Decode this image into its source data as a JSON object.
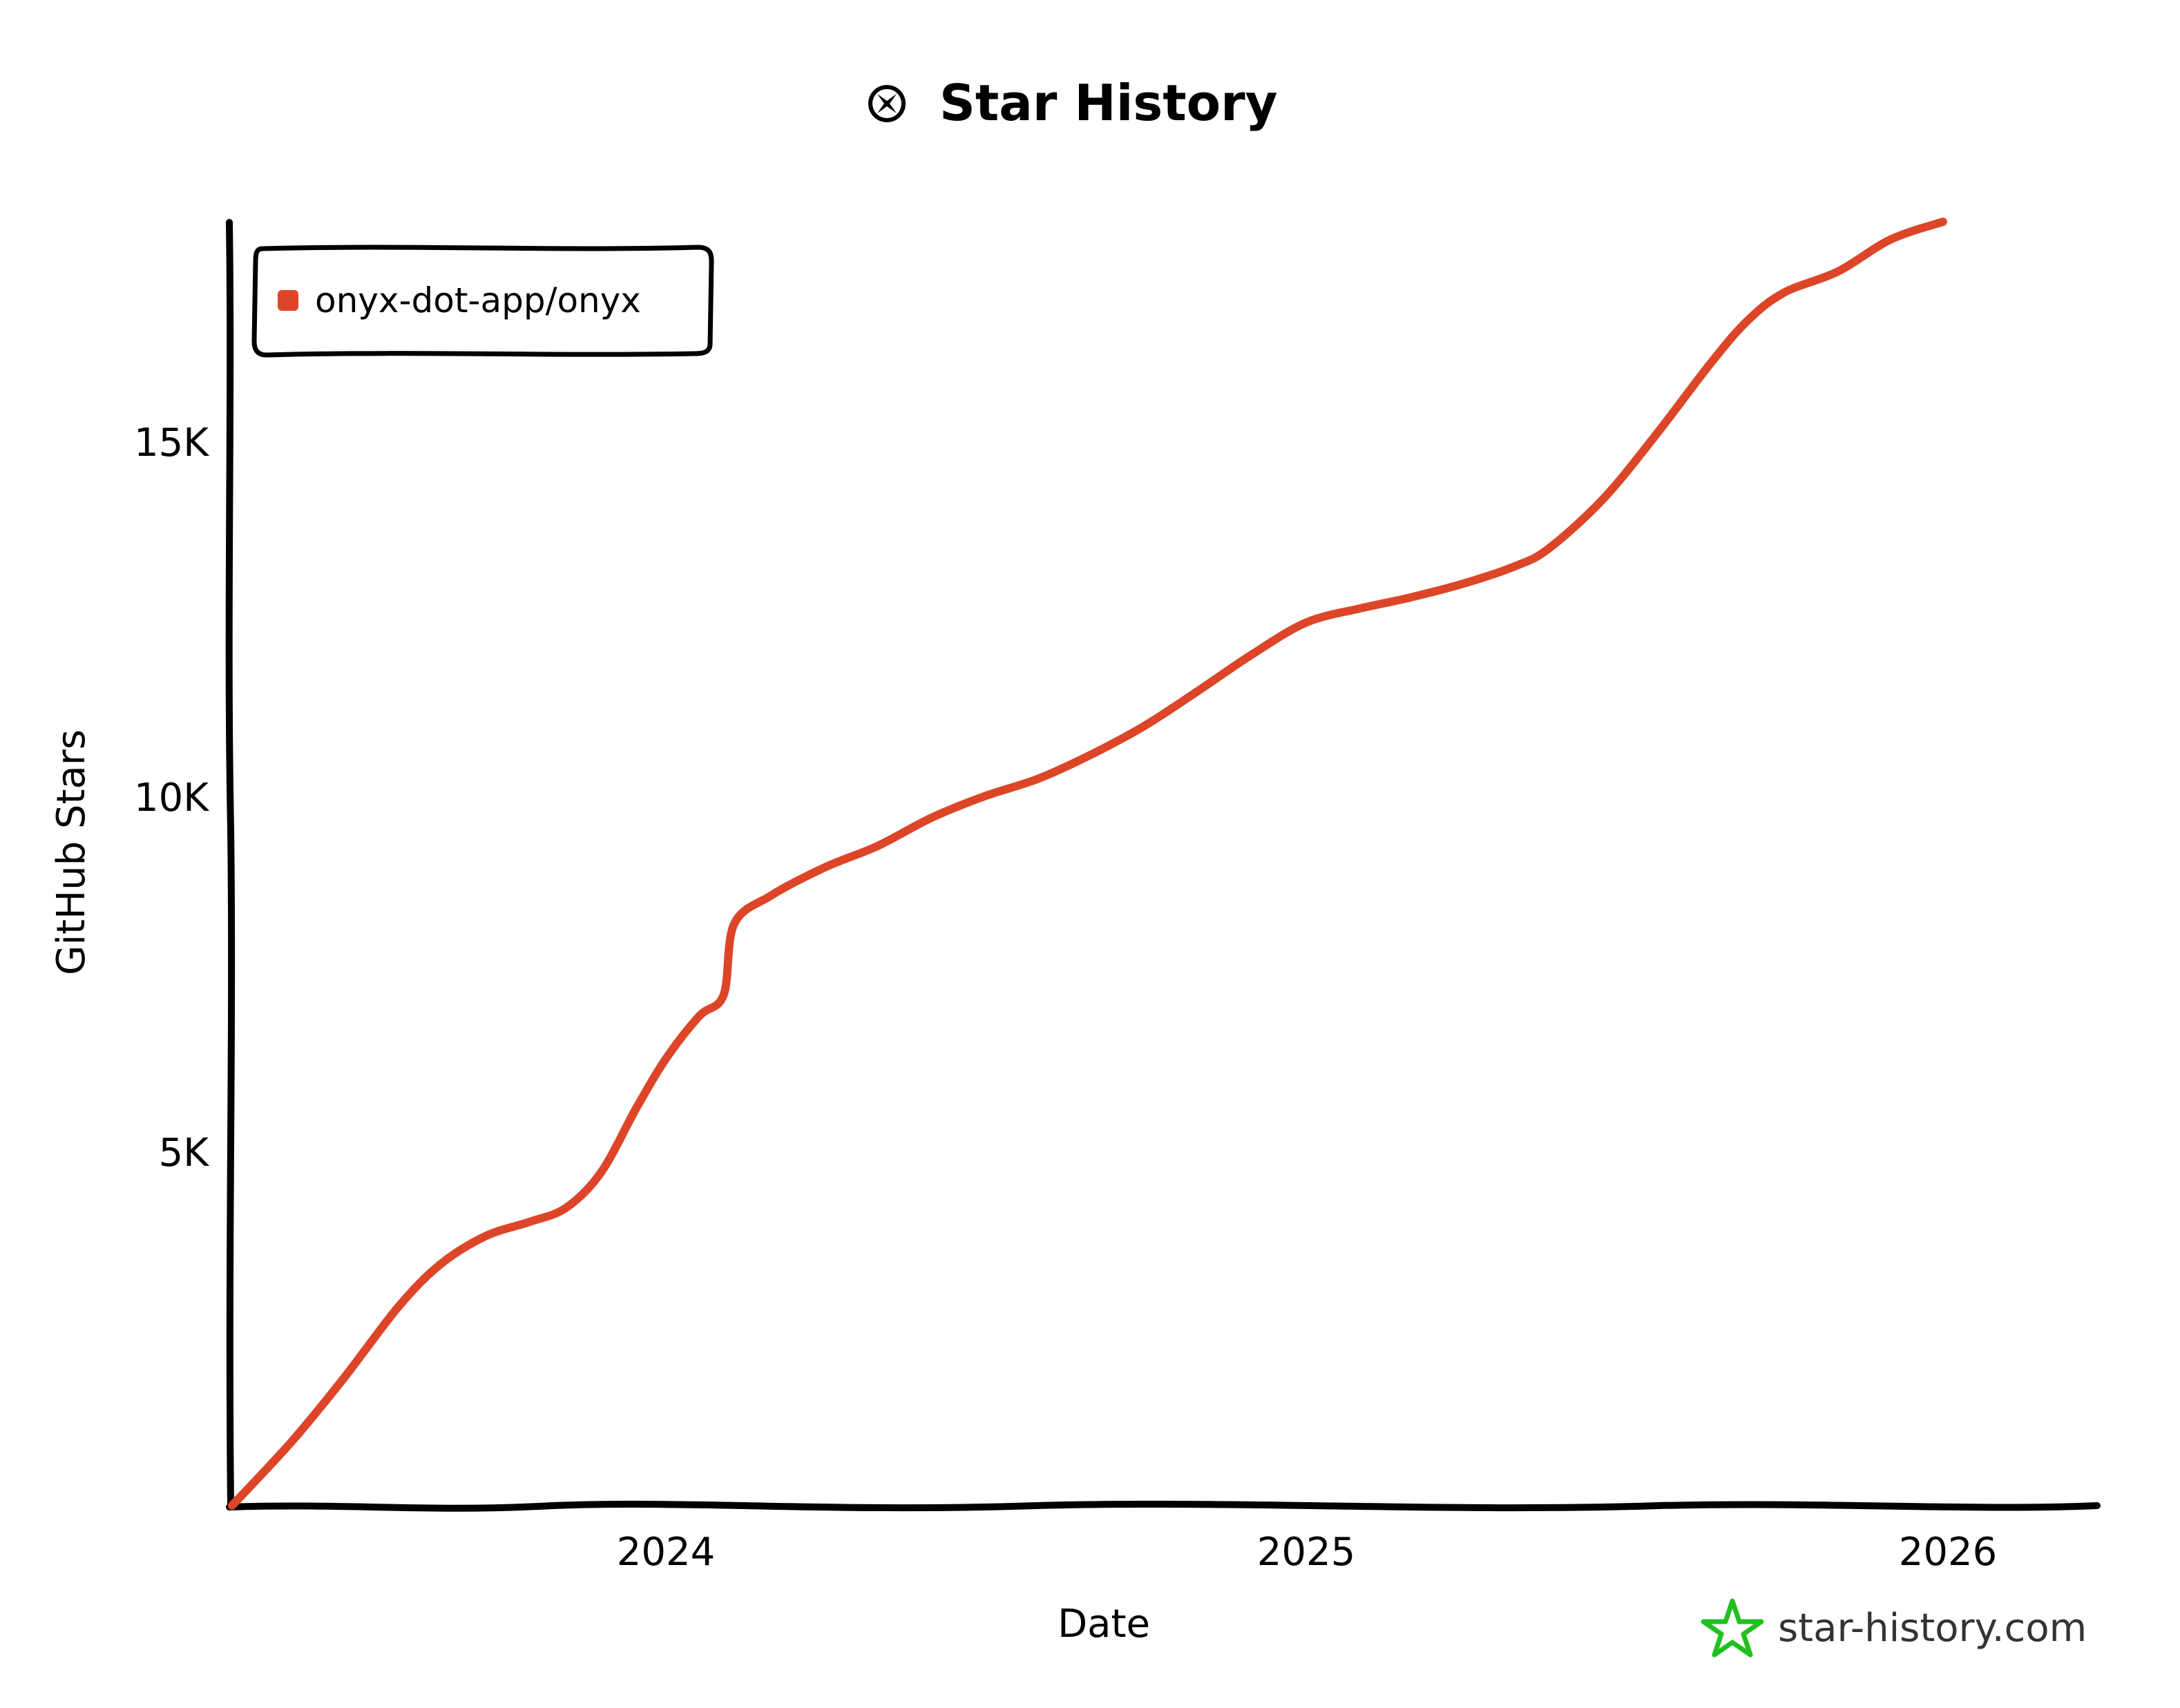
{
  "chart_data": {
    "type": "line",
    "title": "Star History",
    "xlabel": "Date",
    "ylabel": "GitHub Stars",
    "x_ticks": [
      "2024",
      "2025",
      "2026"
    ],
    "y_ticks": [
      "5K",
      "10K",
      "15K"
    ],
    "ylim": [
      0,
      18000
    ],
    "legend": "top-left",
    "grid": false,
    "series": [
      {
        "name": "onyx-dot-app/onyx",
        "color": "#dd4528",
        "points": [
          [
            "2023-04-28",
            0
          ],
          [
            "2023-06-01",
            900
          ],
          [
            "2023-07-01",
            1800
          ],
          [
            "2023-08-01",
            2800
          ],
          [
            "2023-08-25",
            3400
          ],
          [
            "2023-09-20",
            3800
          ],
          [
            "2023-10-15",
            4000
          ],
          [
            "2023-11-05",
            4200
          ],
          [
            "2023-11-25",
            4700
          ],
          [
            "2023-12-15",
            5600
          ],
          [
            "2024-01-01",
            6300
          ],
          [
            "2024-01-20",
            6900
          ],
          [
            "2024-02-03",
            7200
          ],
          [
            "2024-02-09",
            8200
          ],
          [
            "2024-03-01",
            8600
          ],
          [
            "2024-04-01",
            9000
          ],
          [
            "2024-05-01",
            9300
          ],
          [
            "2024-06-01",
            9700
          ],
          [
            "2024-07-01",
            10000
          ],
          [
            "2024-08-01",
            10250
          ],
          [
            "2024-09-01",
            10600
          ],
          [
            "2024-10-01",
            11000
          ],
          [
            "2024-11-01",
            11500
          ],
          [
            "2024-12-01",
            12000
          ],
          [
            "2025-01-01",
            12450
          ],
          [
            "2025-02-01",
            12650
          ],
          [
            "2025-03-01",
            12800
          ],
          [
            "2025-04-01",
            13000
          ],
          [
            "2025-05-01",
            13250
          ],
          [
            "2025-05-20",
            13500
          ],
          [
            "2025-06-20",
            14200
          ],
          [
            "2025-07-20",
            15100
          ],
          [
            "2025-08-20",
            16100
          ],
          [
            "2025-09-10",
            16700
          ],
          [
            "2025-10-01",
            17100
          ],
          [
            "2025-11-01",
            17400
          ],
          [
            "2025-12-01",
            17850
          ],
          [
            "2025-12-31",
            18100
          ]
        ]
      }
    ]
  },
  "brand": {
    "text": "star-history.com",
    "color": "#20c020"
  }
}
